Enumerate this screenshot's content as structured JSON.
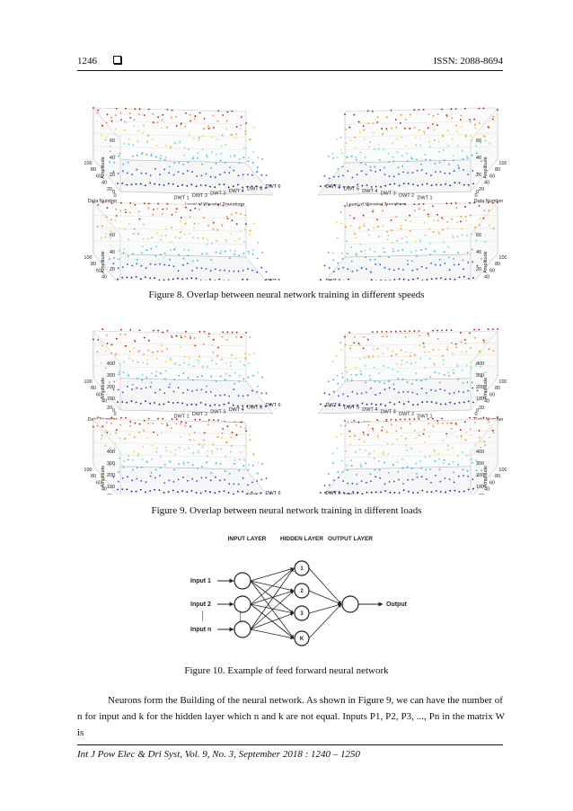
{
  "header": {
    "page_number": "1246",
    "issn": "ISSN: 2088-8694"
  },
  "figure8": {
    "caption": "Figure 8. Overlap between neural network training in different speeds",
    "axis": {
      "z_label": "Amplitude",
      "data_label": "Data Number",
      "level_label": "Level of Wavelet Transform",
      "levels": [
        "DWT 1",
        "DWT 2",
        "DWT 3",
        "DWT 4",
        "DWT 5",
        "DWT 6"
      ],
      "z_ticks": [
        "0",
        "20",
        "40",
        "60"
      ],
      "data_ticks": [
        "0",
        "20",
        "40",
        "60",
        "80",
        "100"
      ]
    }
  },
  "figure9": {
    "caption": "Figure 9. Overlap between neural network training in different loads",
    "axis": {
      "z_label": "Amplitude",
      "data_label": "Data Number",
      "level_label": "Level of Wavelet Tansform",
      "levels": [
        "DWT 1",
        "DWT 2",
        "DWT 3",
        "DWT 4",
        "DWT 5",
        "DWT 6"
      ],
      "z_ticks": [
        "0",
        "100",
        "200",
        "300",
        "400"
      ],
      "data_ticks": [
        "0",
        "20",
        "40",
        "60",
        "80",
        "100"
      ]
    }
  },
  "figure10": {
    "caption": "Figure 10. Example of feed forward neural network",
    "layers": [
      "INPUT LAYER",
      "HIDDEN LAYER",
      "OUTPUT LAYER"
    ],
    "inputs": [
      "Input 1",
      "Input 2",
      "Input n"
    ],
    "hidden_nodes": [
      "1",
      "2",
      "3",
      "K"
    ],
    "output_label": "Output",
    "ellipsis": "......"
  },
  "body_text": {
    "line1": "Neurons form the Building of the neural network. As shown in Figure 9, we can have the number of",
    "line2": "n for input and k for the hidden layer which n and k are not equal. Inputs P1, P2, P3, ..., Pn in the matrix W is"
  },
  "footer": {
    "citation": "Int J Pow Elec & Dri Syst, Vol. 9, No. 3, September 2018 :  1240 – 1250"
  },
  "colors": {
    "series": [
      "#0a1f8f",
      "#1f4fd6",
      "#2ab0e6",
      "#5fe0c9",
      "#e8d43a",
      "#f08a1e",
      "#b31212"
    ]
  }
}
